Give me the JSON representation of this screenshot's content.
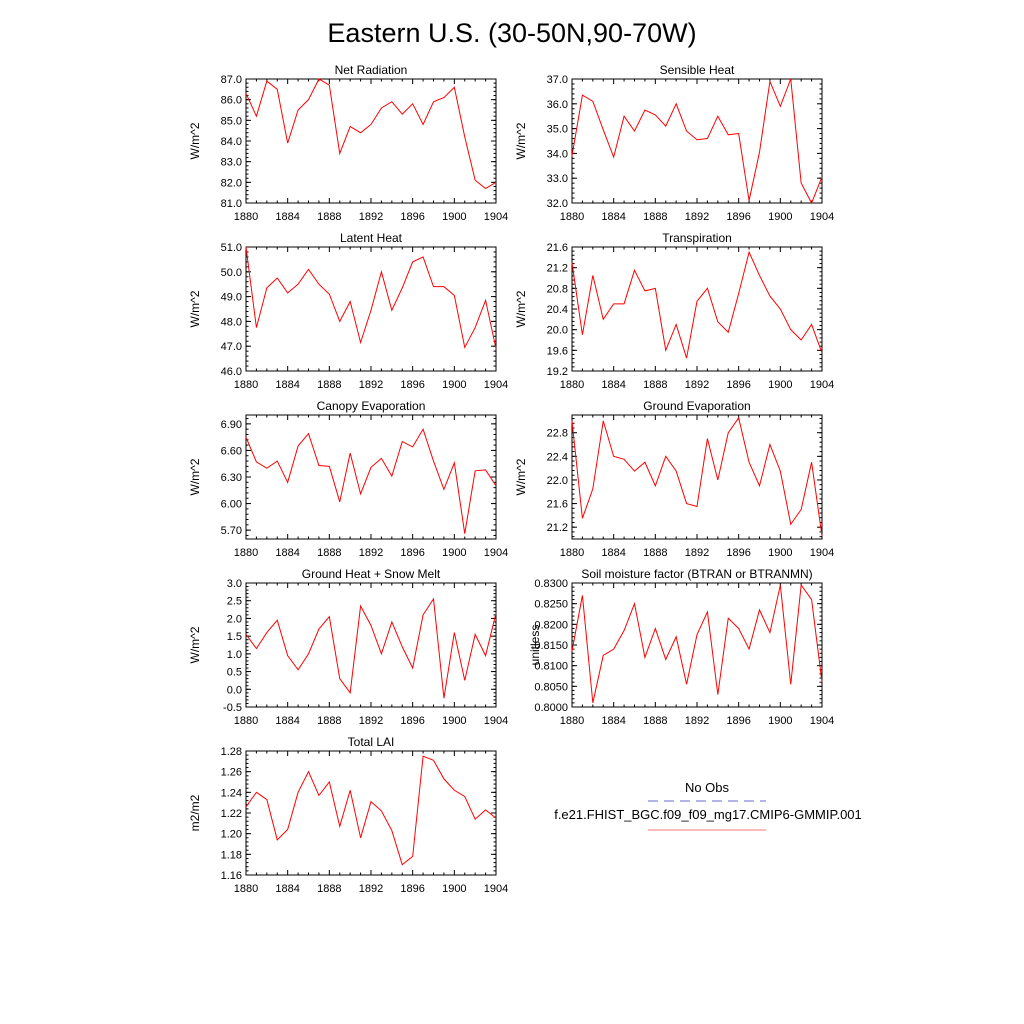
{
  "page": {
    "title": "Eastern U.S. (30-50N,90-70W)"
  },
  "colors": {
    "model_line": "#ff0000",
    "obs_line": "#6a6ad0",
    "axis": "#000000",
    "legend_model_line": "#ff7777"
  },
  "legend": {
    "obs_label": "No Obs",
    "model_label": "f.e21.FHIST_BGC.f09_f09_mg17.CMIP6-GMMIP.001"
  },
  "chart_data": [
    {
      "type": "line",
      "title": "Net Radiation",
      "ylabel": "W/m^2",
      "xlim": [
        1880,
        1904
      ],
      "ylim": [
        81.0,
        87.0
      ],
      "x_ticks": [
        "1880",
        "1884",
        "1888",
        "1892",
        "1896",
        "1900",
        "1904"
      ],
      "y_ticks": [
        "81.0",
        "82.0",
        "83.0",
        "84.0",
        "85.0",
        "86.0",
        "87.0"
      ],
      "y_tick_values": [
        81,
        82,
        83,
        84,
        85,
        86,
        87
      ],
      "x": [
        1880,
        1881,
        1882,
        1883,
        1884,
        1885,
        1886,
        1887,
        1888,
        1889,
        1890,
        1891,
        1892,
        1893,
        1894,
        1895,
        1896,
        1897,
        1898,
        1899,
        1900,
        1901,
        1902,
        1903,
        1904
      ],
      "series": [
        {
          "name": "f.e21.FHIST_BGC.f09_f09_mg17.CMIP6-GMMIP.001",
          "values": [
            86.3,
            85.2,
            86.9,
            86.5,
            83.9,
            85.5,
            86.0,
            87.0,
            86.7,
            83.4,
            84.7,
            84.4,
            84.8,
            85.6,
            85.9,
            85.3,
            85.8,
            84.8,
            85.9,
            86.1,
            86.6,
            84.2,
            82.1,
            81.7,
            82.0
          ]
        }
      ]
    },
    {
      "type": "line",
      "title": "Sensible Heat",
      "ylabel": "W/m^2",
      "xlim": [
        1880,
        1904
      ],
      "ylim": [
        32.0,
        37.0
      ],
      "x_ticks": [
        "1880",
        "1884",
        "1888",
        "1892",
        "1896",
        "1900",
        "1904"
      ],
      "y_ticks": [
        "32.0",
        "33.0",
        "34.0",
        "35.0",
        "36.0",
        "37.0"
      ],
      "y_tick_values": [
        32,
        33,
        34,
        35,
        36,
        37
      ],
      "x": [
        1880,
        1881,
        1882,
        1883,
        1884,
        1885,
        1886,
        1887,
        1888,
        1889,
        1890,
        1891,
        1892,
        1893,
        1894,
        1895,
        1896,
        1897,
        1898,
        1899,
        1900,
        1901,
        1902,
        1903,
        1904
      ],
      "series": [
        {
          "name": "f.e21.FHIST_BGC.f09_f09_mg17.CMIP6-GMMIP.001",
          "values": [
            33.9,
            36.35,
            36.1,
            34.95,
            33.85,
            35.5,
            34.9,
            35.75,
            35.55,
            35.1,
            36.0,
            34.9,
            34.55,
            34.6,
            35.5,
            34.75,
            34.8,
            32.1,
            34.05,
            36.9,
            35.9,
            37.0,
            32.8,
            32.0,
            33.05
          ]
        }
      ]
    },
    {
      "type": "line",
      "title": "Latent Heat",
      "ylabel": "W/m^2",
      "xlim": [
        1880,
        1904
      ],
      "ylim": [
        46.0,
        51.0
      ],
      "x_ticks": [
        "1880",
        "1884",
        "1888",
        "1892",
        "1896",
        "1900",
        "1904"
      ],
      "y_ticks": [
        "46.0",
        "47.0",
        "48.0",
        "49.0",
        "50.0",
        "51.0"
      ],
      "y_tick_values": [
        46,
        47,
        48,
        49,
        50,
        51
      ],
      "x": [
        1880,
        1881,
        1882,
        1883,
        1884,
        1885,
        1886,
        1887,
        1888,
        1889,
        1890,
        1891,
        1892,
        1893,
        1894,
        1895,
        1896,
        1897,
        1898,
        1899,
        1900,
        1901,
        1902,
        1903,
        1904
      ],
      "series": [
        {
          "name": "f.e21.FHIST_BGC.f09_f09_mg17.CMIP6-GMMIP.001",
          "values": [
            51.0,
            47.75,
            49.35,
            49.75,
            49.15,
            49.5,
            50.1,
            49.5,
            49.1,
            48.0,
            48.8,
            47.15,
            48.45,
            50.0,
            48.45,
            49.35,
            50.4,
            50.6,
            49.4,
            49.4,
            49.05,
            46.95,
            47.75,
            48.85,
            46.9
          ]
        }
      ]
    },
    {
      "type": "line",
      "title": "Transpiration",
      "ylabel": "W/m^2",
      "xlim": [
        1880,
        1904
      ],
      "ylim": [
        19.2,
        21.6
      ],
      "x_ticks": [
        "1880",
        "1884",
        "1888",
        "1892",
        "1896",
        "1900",
        "1904"
      ],
      "y_ticks": [
        "19.2",
        "19.6",
        "20.0",
        "20.4",
        "20.8",
        "21.2",
        "21.6"
      ],
      "y_tick_values": [
        19.2,
        19.6,
        20.0,
        20.4,
        20.8,
        21.2,
        21.6
      ],
      "x": [
        1880,
        1881,
        1882,
        1883,
        1884,
        1885,
        1886,
        1887,
        1888,
        1889,
        1890,
        1891,
        1892,
        1893,
        1894,
        1895,
        1896,
        1897,
        1898,
        1899,
        1900,
        1901,
        1902,
        1903,
        1904
      ],
      "series": [
        {
          "name": "f.e21.FHIST_BGC.f09_f09_mg17.CMIP6-GMMIP.001",
          "values": [
            21.3,
            19.9,
            21.05,
            20.2,
            20.5,
            20.5,
            21.15,
            20.75,
            20.8,
            19.6,
            20.1,
            19.45,
            20.55,
            20.8,
            20.15,
            19.95,
            20.7,
            21.5,
            21.05,
            20.65,
            20.4,
            20.0,
            19.8,
            20.1,
            19.55
          ]
        }
      ]
    },
    {
      "type": "line",
      "title": "Canopy Evaporation",
      "ylabel": "W/m^2",
      "xlim": [
        1880,
        1904
      ],
      "ylim": [
        5.6,
        7.0
      ],
      "x_ticks": [
        "1880",
        "1884",
        "1888",
        "1892",
        "1896",
        "1900",
        "1904"
      ],
      "y_ticks": [
        "5.70",
        "6.00",
        "6.30",
        "6.60",
        "6.90"
      ],
      "y_tick_values": [
        5.7,
        6.0,
        6.3,
        6.6,
        6.9
      ],
      "x": [
        1880,
        1881,
        1882,
        1883,
        1884,
        1885,
        1886,
        1887,
        1888,
        1889,
        1890,
        1891,
        1892,
        1893,
        1894,
        1895,
        1896,
        1897,
        1898,
        1899,
        1900,
        1901,
        1902,
        1903,
        1904
      ],
      "series": [
        {
          "name": "f.e21.FHIST_BGC.f09_f09_mg17.CMIP6-GMMIP.001",
          "values": [
            6.75,
            6.47,
            6.4,
            6.48,
            6.24,
            6.65,
            6.79,
            6.43,
            6.42,
            6.02,
            6.57,
            6.11,
            6.41,
            6.51,
            6.31,
            6.7,
            6.64,
            6.84,
            6.48,
            6.16,
            6.46,
            5.66,
            6.37,
            6.38,
            6.2
          ]
        }
      ]
    },
    {
      "type": "line",
      "title": "Ground Evaporation",
      "ylabel": "W/m^2",
      "xlim": [
        1880,
        1904
      ],
      "ylim": [
        21.0,
        23.1
      ],
      "x_ticks": [
        "1880",
        "1884",
        "1888",
        "1892",
        "1896",
        "1900",
        "1904"
      ],
      "y_ticks": [
        "21.2",
        "21.6",
        "22.0",
        "22.4",
        "22.8"
      ],
      "y_tick_values": [
        21.2,
        21.6,
        22.0,
        22.4,
        22.8
      ],
      "x": [
        1880,
        1881,
        1882,
        1883,
        1884,
        1885,
        1886,
        1887,
        1888,
        1889,
        1890,
        1891,
        1892,
        1893,
        1894,
        1895,
        1896,
        1897,
        1898,
        1899,
        1900,
        1901,
        1902,
        1903,
        1904
      ],
      "series": [
        {
          "name": "f.e21.FHIST_BGC.f09_f09_mg17.CMIP6-GMMIP.001",
          "values": [
            23.0,
            21.35,
            21.85,
            23.0,
            22.4,
            22.35,
            22.15,
            22.3,
            21.9,
            22.4,
            22.15,
            21.6,
            21.55,
            22.7,
            22.0,
            22.8,
            23.05,
            22.3,
            21.9,
            22.6,
            22.15,
            21.25,
            21.5,
            22.3,
            21.05
          ]
        }
      ]
    },
    {
      "type": "line",
      "title": "Ground Heat + Snow Melt",
      "ylabel": "W/m^2",
      "xlim": [
        1880,
        1904
      ],
      "ylim": [
        -0.5,
        3.0
      ],
      "x_ticks": [
        "1880",
        "1884",
        "1888",
        "1892",
        "1896",
        "1900",
        "1904"
      ],
      "y_ticks": [
        "-0.5",
        "0.0",
        "0.5",
        "1.0",
        "1.5",
        "2.0",
        "2.5",
        "3.0"
      ],
      "y_tick_values": [
        -0.5,
        0.0,
        0.5,
        1.0,
        1.5,
        2.0,
        2.5,
        3.0
      ],
      "x": [
        1880,
        1881,
        1882,
        1883,
        1884,
        1885,
        1886,
        1887,
        1888,
        1889,
        1890,
        1891,
        1892,
        1893,
        1894,
        1895,
        1896,
        1897,
        1898,
        1899,
        1900,
        1901,
        1902,
        1903,
        1904
      ],
      "series": [
        {
          "name": "f.e21.FHIST_BGC.f09_f09_mg17.CMIP6-GMMIP.001",
          "values": [
            1.55,
            1.15,
            1.6,
            1.95,
            0.95,
            0.55,
            1.0,
            1.7,
            2.05,
            0.3,
            -0.1,
            2.35,
            1.8,
            1.0,
            1.9,
            1.2,
            0.6,
            2.1,
            2.55,
            -0.25,
            1.6,
            0.25,
            1.55,
            0.95,
            2.15
          ]
        }
      ]
    },
    {
      "type": "line",
      "title": "Soil moisture factor (BTRAN or BTRANMN)",
      "ylabel": "unitless",
      "xlim": [
        1880,
        1904
      ],
      "ylim": [
        0.8,
        0.83
      ],
      "x_ticks": [
        "1880",
        "1884",
        "1888",
        "1892",
        "1896",
        "1900",
        "1904"
      ],
      "y_ticks": [
        "0.8000",
        "0.8050",
        "0.8100",
        "0.8150",
        "0.8200",
        "0.8250",
        "0.8300"
      ],
      "y_tick_values": [
        0.8,
        0.805,
        0.81,
        0.815,
        0.82,
        0.825,
        0.83
      ],
      "x": [
        1880,
        1881,
        1882,
        1883,
        1884,
        1885,
        1886,
        1887,
        1888,
        1889,
        1890,
        1891,
        1892,
        1893,
        1894,
        1895,
        1896,
        1897,
        1898,
        1899,
        1900,
        1901,
        1902,
        1903,
        1904
      ],
      "series": [
        {
          "name": "f.e21.FHIST_BGC.f09_f09_mg17.CMIP6-GMMIP.001",
          "values": [
            0.8135,
            0.827,
            0.801,
            0.8125,
            0.814,
            0.8185,
            0.825,
            0.812,
            0.819,
            0.8115,
            0.817,
            0.8055,
            0.8175,
            0.823,
            0.803,
            0.8215,
            0.819,
            0.814,
            0.8235,
            0.818,
            0.8295,
            0.8055,
            0.8295,
            0.826,
            0.806
          ]
        }
      ]
    },
    {
      "type": "line",
      "title": "Total LAI",
      "ylabel": "m2/m2",
      "xlim": [
        1880,
        1904
      ],
      "ylim": [
        1.16,
        1.28
      ],
      "x_ticks": [
        "1880",
        "1884",
        "1888",
        "1892",
        "1896",
        "1900",
        "1904"
      ],
      "y_ticks": [
        "1.16",
        "1.18",
        "1.20",
        "1.22",
        "1.24",
        "1.26",
        "1.28"
      ],
      "y_tick_values": [
        1.16,
        1.18,
        1.2,
        1.22,
        1.24,
        1.26,
        1.28
      ],
      "x": [
        1880,
        1881,
        1882,
        1883,
        1884,
        1885,
        1886,
        1887,
        1888,
        1889,
        1890,
        1891,
        1892,
        1893,
        1894,
        1895,
        1896,
        1897,
        1898,
        1899,
        1900,
        1901,
        1902,
        1903,
        1904
      ],
      "series": [
        {
          "name": "f.e21.FHIST_BGC.f09_f09_mg17.CMIP6-GMMIP.001",
          "values": [
            1.226,
            1.24,
            1.233,
            1.194,
            1.204,
            1.24,
            1.26,
            1.237,
            1.25,
            1.207,
            1.242,
            1.196,
            1.231,
            1.222,
            1.203,
            1.17,
            1.178,
            1.275,
            1.271,
            1.253,
            1.242,
            1.236,
            1.214,
            1.223,
            1.215
          ]
        }
      ]
    }
  ]
}
